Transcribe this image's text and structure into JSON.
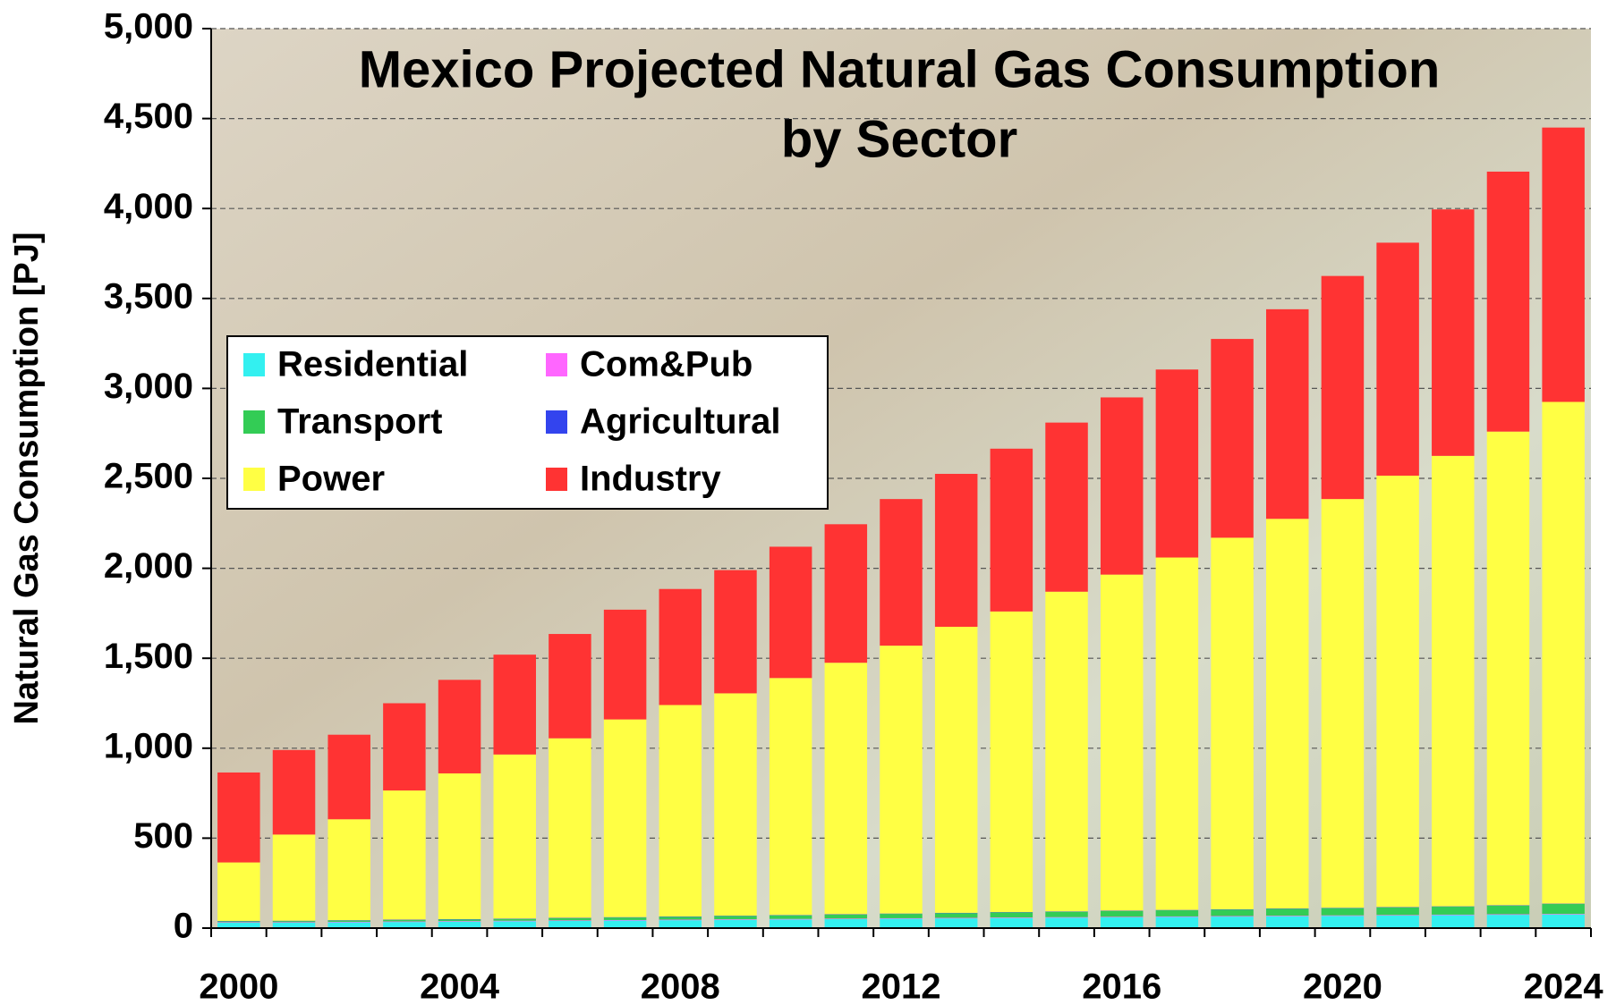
{
  "chart_data": {
    "type": "stacked_bar",
    "title": [
      "Mexico Projected Natural Gas Consumption",
      "by Sector"
    ],
    "y_label": "Natural Gas Consumption [PJ]",
    "categories": [
      "2000",
      null,
      null,
      null,
      "2004",
      null,
      null,
      null,
      "2008",
      null,
      null,
      null,
      "2012",
      null,
      null,
      null,
      "2016",
      null,
      null,
      null,
      "2020",
      null,
      null,
      null,
      "2024"
    ],
    "series": [
      {
        "name": "Residential",
        "color": "#33f0f0",
        "values": [
          30,
          30,
          32,
          34,
          36,
          38,
          40,
          42,
          44,
          46,
          48,
          50,
          52,
          54,
          56,
          58,
          60,
          62,
          64,
          66,
          68,
          70,
          72,
          74,
          76
        ]
      },
      {
        "name": "Com&Pub",
        "color": "#ff66ff",
        "values": [
          3,
          3,
          3,
          3,
          3,
          3,
          3,
          3,
          3,
          3,
          3,
          3,
          3,
          3,
          3,
          3,
          3,
          3,
          3,
          3,
          3,
          3,
          3,
          3,
          3
        ]
      },
      {
        "name": "Transport",
        "color": "#33cc55",
        "values": [
          5,
          6,
          7,
          8,
          9,
          10,
          12,
          14,
          16,
          18,
          20,
          22,
          24,
          26,
          28,
          30,
          32,
          34,
          36,
          38,
          40,
          42,
          44,
          48,
          55
        ]
      },
      {
        "name": "Agricultural",
        "color": "#3344ee",
        "values": [
          2,
          2,
          2,
          2,
          2,
          2,
          2,
          2,
          2,
          2,
          2,
          2,
          2,
          2,
          2,
          2,
          2,
          2,
          2,
          2,
          2,
          2,
          2,
          2,
          2
        ]
      },
      {
        "name": "Power",
        "color": "#ffff44",
        "values": [
          325,
          479,
          561,
          718,
          810,
          912,
          998,
          1099,
          1175,
          1236,
          1317,
          1398,
          1489,
          1590,
          1671,
          1777,
          1868,
          1959,
          2065,
          2166,
          2272,
          2398,
          2504,
          2633,
          2789
        ]
      },
      {
        "name": "Industry",
        "color": "#ff3333",
        "values": [
          500,
          470,
          470,
          485,
          520,
          555,
          580,
          610,
          645,
          685,
          730,
          770,
          815,
          850,
          905,
          940,
          985,
          1045,
          1105,
          1165,
          1240,
          1295,
          1370,
          1445,
          1525
        ]
      }
    ],
    "ylim": [
      0,
      5000
    ],
    "yticks": [
      0,
      500,
      {
        "value": 1000,
        "label": "1,000"
      },
      {
        "value": 1500,
        "label": "1,500"
      },
      {
        "value": 2000,
        "label": "2,000"
      },
      {
        "value": 2500,
        "label": "2,500"
      },
      {
        "value": 3000,
        "label": "3,000"
      },
      {
        "value": 3500,
        "label": "3,500"
      },
      {
        "value": 4000,
        "label": "4,000"
      },
      {
        "value": 4500,
        "label": "4,500"
      },
      {
        "value": 5000,
        "label": "5,000"
      }
    ],
    "grid": true,
    "legend": "upper left"
  }
}
